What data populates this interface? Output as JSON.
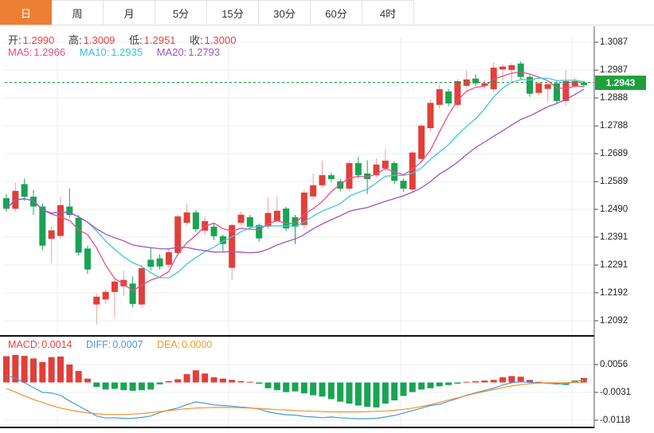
{
  "toolbar": {
    "tabs": [
      {
        "id": "day",
        "label": "日",
        "active": true
      },
      {
        "id": "week",
        "label": "周",
        "active": false
      },
      {
        "id": "month",
        "label": "月",
        "active": false
      },
      {
        "id": "5min",
        "label": "5分",
        "active": false
      },
      {
        "id": "15min",
        "label": "15分",
        "active": false
      },
      {
        "id": "30min",
        "label": "30分",
        "active": false
      },
      {
        "id": "60min",
        "label": "60分",
        "active": false
      },
      {
        "id": "4hour",
        "label": "4时",
        "active": false
      }
    ]
  },
  "indicators": {
    "ohlc": {
      "open_label": "开:",
      "open": "1.2990",
      "high_label": "高:",
      "high": "1.3009",
      "low_label": "低:",
      "low": "1.2951",
      "close_label": "收:",
      "close": "1.3000"
    },
    "ma": {
      "ma5_label": "MA5:",
      "ma5": "1.2966",
      "ma10_label": "MA10:",
      "ma10": "1.2935",
      "ma20_label": "MA20:",
      "ma20": "1.2793"
    },
    "macd": {
      "macd_label": "MACD:",
      "macd": "0.0014",
      "diff_label": "DIFF:",
      "diff": "0.0007",
      "dea_label": "DEA:",
      "dea": "0.0000"
    }
  },
  "colors": {
    "up": "#e13f3a",
    "up_wick": "#f29e97",
    "down": "#18a452",
    "ma5": "#ea4d8b",
    "ma10": "#43c3e2",
    "ma20": "#a155c0",
    "diff": "#4a9ad4",
    "dea": "#f0932a",
    "price_line": "#27a444",
    "price_tag_bg": "#1fa03c",
    "tab_active_bg": "#ee7e33",
    "grid": "#e9eff4",
    "axis_text": "#222222",
    "pane_border": "#111111"
  },
  "chart_data": [
    {
      "type": "candlestick",
      "pane": "price",
      "title": "",
      "legend_position": "top-left",
      "grid": true,
      "y_ticks": [
        "1.3087",
        "1.2987",
        "1.2888",
        "1.2788",
        "1.2689",
        "1.2589",
        "1.2490",
        "1.2391",
        "1.2291",
        "1.2192",
        "1.2092"
      ],
      "ylim": [
        1.2044,
        1.3105
      ],
      "current_price": 1.2943,
      "current_price_label": "1.2943",
      "overlays": [
        {
          "name": "MA5",
          "period": 5
        },
        {
          "name": "MA10",
          "period": 10
        },
        {
          "name": "MA20",
          "period": 20
        }
      ],
      "candles": [
        [
          1.253,
          1.2492,
          1.2545,
          1.2482
        ],
        [
          1.2492,
          1.2556,
          1.2585,
          1.2482
        ],
        [
          1.258,
          1.2535,
          1.26,
          1.252
        ],
        [
          1.2535,
          1.25,
          1.256,
          1.247
        ],
        [
          1.25,
          1.236,
          1.251,
          1.2345
        ],
        [
          1.2385,
          1.2415,
          1.243,
          1.23
        ],
        [
          1.2395,
          1.2505,
          1.2535,
          1.2385
        ],
        [
          1.25,
          1.247,
          1.2565,
          1.246
        ],
        [
          1.246,
          1.2335,
          1.247,
          1.2325
        ],
        [
          1.235,
          1.2275,
          1.236,
          1.226
        ],
        [
          1.215,
          1.2178,
          1.219,
          1.208
        ],
        [
          1.2168,
          1.2195,
          1.2205,
          1.2155
        ],
        [
          1.2195,
          1.2232,
          1.224,
          1.2105
        ],
        [
          1.2215,
          1.2238,
          1.2272,
          1.218
        ],
        [
          1.2225,
          1.2152,
          1.225,
          1.214
        ],
        [
          1.215,
          1.228,
          1.2292,
          1.2138
        ],
        [
          1.231,
          1.2285,
          1.2355,
          1.2272
        ],
        [
          1.2315,
          1.2286,
          1.233,
          1.2275
        ],
        [
          1.2292,
          1.2337,
          1.235,
          1.2282
        ],
        [
          1.2334,
          1.2465,
          1.2472,
          1.2325
        ],
        [
          1.2442,
          1.2479,
          1.2508,
          1.243
        ],
        [
          1.2479,
          1.2419,
          1.2487,
          1.2408
        ],
        [
          1.2414,
          1.2448,
          1.2465,
          1.2398
        ],
        [
          1.2428,
          1.2394,
          1.2438,
          1.238
        ],
        [
          1.2394,
          1.2366,
          1.24,
          1.234
        ],
        [
          1.2281,
          1.2434,
          1.244,
          1.2238
        ],
        [
          1.2442,
          1.2471,
          1.2482,
          1.2432
        ],
        [
          1.2462,
          1.2428,
          1.247,
          1.2418
        ],
        [
          1.2434,
          1.2386,
          1.244,
          1.2375
        ],
        [
          1.2428,
          1.2477,
          1.2533,
          1.2418
        ],
        [
          1.2448,
          1.2485,
          1.2536,
          1.244
        ],
        [
          1.2493,
          1.2422,
          1.25,
          1.2412
        ],
        [
          1.2462,
          1.2428,
          1.247,
          1.2366
        ],
        [
          1.2434,
          1.255,
          1.2558,
          1.242
        ],
        [
          1.2536,
          1.2576,
          1.2618,
          1.2526
        ],
        [
          1.2576,
          1.2612,
          1.2664,
          1.2566
        ],
        [
          1.2612,
          1.2598,
          1.262,
          1.2588
        ],
        [
          1.259,
          1.2564,
          1.2598,
          1.2554
        ],
        [
          1.2564,
          1.2655,
          1.2665,
          1.2554
        ],
        [
          1.2655,
          1.2612,
          1.2678,
          1.26
        ],
        [
          1.2618,
          1.2598,
          1.2665,
          1.2545
        ],
        [
          1.2612,
          1.265,
          1.2672,
          1.2602
        ],
        [
          1.2636,
          1.2664,
          1.2704,
          1.2626
        ],
        [
          1.2655,
          1.2592,
          1.2662,
          1.258
        ],
        [
          1.2592,
          1.2564,
          1.26,
          1.2552
        ],
        [
          1.2561,
          1.2693,
          1.27,
          1.255
        ],
        [
          1.267,
          1.2789,
          1.2795,
          1.2655
        ],
        [
          1.278,
          1.287,
          1.2882,
          1.2768
        ],
        [
          1.2863,
          1.2919,
          1.2935,
          1.285
        ],
        [
          1.2911,
          1.2868,
          1.292,
          1.2858
        ],
        [
          1.2863,
          1.2948,
          1.2956,
          1.2852
        ],
        [
          1.2931,
          1.2954,
          1.2988,
          1.2922
        ],
        [
          1.2957,
          1.294,
          1.2972,
          1.293
        ],
        [
          1.2931,
          1.294,
          1.2952,
          1.292
        ],
        [
          1.2919,
          1.2996,
          1.3016,
          1.291
        ],
        [
          1.299,
          1.3,
          1.3009,
          1.2951
        ],
        [
          1.2988,
          1.3005,
          1.3012,
          1.294
        ],
        [
          1.3011,
          1.2963,
          1.3018,
          1.2955
        ],
        [
          1.2963,
          1.2903,
          1.297,
          1.2892
        ],
        [
          1.2906,
          1.294,
          1.2948,
          1.2898
        ],
        [
          1.292,
          1.2937,
          1.2944,
          1.2874
        ],
        [
          1.294,
          1.2877,
          1.2948,
          1.2868
        ],
        [
          1.2877,
          1.2948,
          1.2988,
          1.286
        ],
        [
          1.2931,
          1.2948,
          1.296,
          1.2922
        ],
        [
          1.2943,
          1.2934,
          1.295,
          1.2926
        ]
      ]
    },
    {
      "type": "bar",
      "pane": "macd",
      "grid": true,
      "y_ticks": [
        "0.0056",
        "-0.0031",
        "-0.0118"
      ],
      "ylim": [
        -0.0135,
        0.0088
      ],
      "series": [
        {
          "name": "MACD",
          "kind": "histogram",
          "values": [
            0.0082,
            0.0086,
            0.0083,
            0.0075,
            0.0064,
            0.0079,
            0.0081,
            0.0056,
            0.0036,
            0.0012,
            -0.0014,
            -0.0022,
            -0.002,
            -0.0024,
            -0.0026,
            -0.0024,
            -0.0022,
            -0.0006,
            0.0004,
            0.001,
            0.0026,
            0.0038,
            0.0028,
            0.0016,
            0.0012,
            0.0008,
            0.0004,
            0.0002,
            -0.0004,
            -0.0018,
            -0.0024,
            -0.003,
            -0.0028,
            -0.0034,
            -0.004,
            -0.0044,
            -0.0052,
            -0.006,
            -0.0066,
            -0.0072,
            -0.0076,
            -0.0078,
            -0.0066,
            -0.0056,
            -0.0042,
            -0.003,
            -0.0022,
            -0.0018,
            -0.0012,
            -0.0008,
            -0.0004,
            0.0002,
            0.0004,
            0.0006,
            0.0008,
            0.0016,
            0.002,
            0.0018,
            0.0008,
            0.0002,
            -0.0004,
            -0.0006,
            -0.0008,
            0.0006,
            0.0014
          ]
        },
        {
          "name": "DIFF",
          "kind": "line",
          "values": [
            0.0022,
            0.0013,
            -0.0001,
            -0.0016,
            -0.0031,
            -0.0033,
            -0.004,
            -0.0058,
            -0.0073,
            -0.0089,
            -0.0105,
            -0.0111,
            -0.011,
            -0.0112,
            -0.0112,
            -0.0109,
            -0.0105,
            -0.0094,
            -0.0086,
            -0.008,
            -0.0069,
            -0.0061,
            -0.0065,
            -0.007,
            -0.0072,
            -0.0074,
            -0.0077,
            -0.0079,
            -0.0083,
            -0.0092,
            -0.0097,
            -0.0101,
            -0.0102,
            -0.0106,
            -0.0108,
            -0.011,
            -0.0108,
            -0.011,
            -0.0112,
            -0.0113,
            -0.0113,
            -0.0112,
            -0.0108,
            -0.0103,
            -0.0096,
            -0.0088,
            -0.008,
            -0.0072,
            -0.0068,
            -0.0059,
            -0.005,
            -0.004,
            -0.0032,
            -0.0025,
            -0.0018,
            -0.0008,
            -0.0001,
            0.0002,
            0.0,
            -0.0001,
            -0.0003,
            -0.0004,
            -0.0005,
            0.0003,
            0.0007
          ]
        },
        {
          "name": "DEA",
          "kind": "line",
          "values": [
            -0.0019,
            -0.003,
            -0.0042,
            -0.0053,
            -0.0063,
            -0.0072,
            -0.008,
            -0.0086,
            -0.0091,
            -0.0095,
            -0.0098,
            -0.01,
            -0.01,
            -0.01,
            -0.0099,
            -0.0097,
            -0.0094,
            -0.0091,
            -0.0088,
            -0.0085,
            -0.0082,
            -0.008,
            -0.0079,
            -0.0078,
            -0.0078,
            -0.0078,
            -0.0079,
            -0.008,
            -0.0081,
            -0.0083,
            -0.0085,
            -0.0086,
            -0.0088,
            -0.0089,
            -0.009,
            -0.0091,
            -0.0092,
            -0.0092,
            -0.0092,
            -0.0092,
            -0.0091,
            -0.009,
            -0.0089,
            -0.0087,
            -0.0084,
            -0.008,
            -0.0075,
            -0.0069,
            -0.0062,
            -0.0055,
            -0.0048,
            -0.0041,
            -0.0034,
            -0.0028,
            -0.0022,
            -0.0016,
            -0.0011,
            -0.0007,
            -0.0004,
            -0.0002,
            -0.0001,
            -0.0001,
            -0.0001,
            0.0,
            0.0
          ]
        }
      ]
    }
  ]
}
